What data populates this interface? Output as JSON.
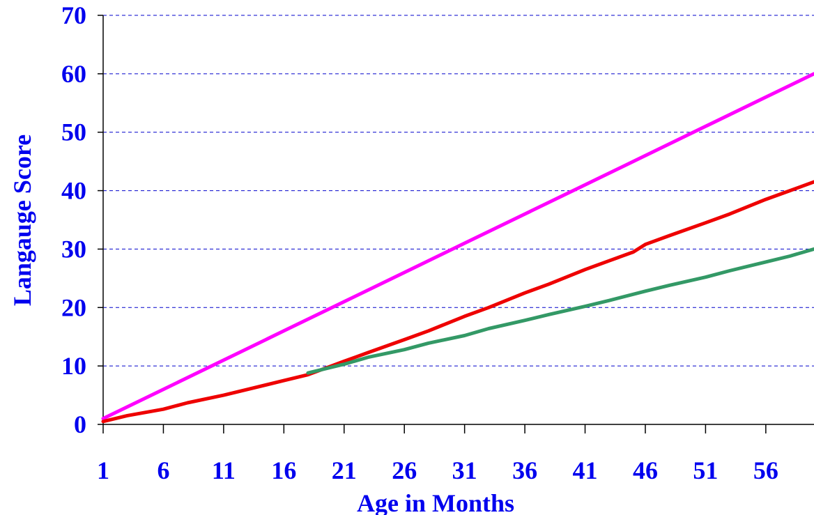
{
  "chart_data": {
    "type": "line",
    "title": "",
    "xlabel": "Age in Months",
    "ylabel": "Langauge Score",
    "xlim": [
      1,
      60
    ],
    "ylim": [
      0,
      70
    ],
    "x_ticks": [
      "1",
      "6",
      "11",
      "16",
      "21",
      "26",
      "31",
      "36",
      "41",
      "46",
      "51",
      "56"
    ],
    "y_ticks": [
      "0",
      "10",
      "20",
      "30",
      "40",
      "50",
      "60",
      "70"
    ],
    "grid": "horizontal dashed",
    "legend": "none",
    "series": [
      {
        "color": "#ff00ff",
        "points": [
          [
            1,
            1
          ],
          [
            6,
            6
          ],
          [
            11,
            11
          ],
          [
            16,
            16
          ],
          [
            21,
            21
          ],
          [
            26,
            26
          ],
          [
            31,
            31
          ],
          [
            36,
            36
          ],
          [
            41,
            41
          ],
          [
            46,
            46
          ],
          [
            51,
            51
          ],
          [
            56,
            56
          ],
          [
            60,
            60
          ]
        ]
      },
      {
        "color": "#ee0000",
        "points": [
          [
            1,
            0.5
          ],
          [
            3,
            1.5
          ],
          [
            6,
            2.6
          ],
          [
            8,
            3.7
          ],
          [
            11,
            5.0
          ],
          [
            13,
            6.0
          ],
          [
            16,
            7.5
          ],
          [
            18,
            8.5
          ],
          [
            21,
            10.8
          ],
          [
            23,
            12.3
          ],
          [
            26,
            14.5
          ],
          [
            28,
            16.0
          ],
          [
            31,
            18.5
          ],
          [
            33,
            20.0
          ],
          [
            36,
            22.5
          ],
          [
            38,
            24.0
          ],
          [
            41,
            26.5
          ],
          [
            43,
            28.0
          ],
          [
            45,
            29.5
          ],
          [
            46,
            30.8
          ],
          [
            48,
            32.3
          ],
          [
            51,
            34.5
          ],
          [
            53,
            36.0
          ],
          [
            56,
            38.5
          ],
          [
            58,
            40.0
          ],
          [
            60,
            41.5
          ]
        ]
      },
      {
        "color": "#339966",
        "points": [
          [
            18,
            8.8
          ],
          [
            21,
            10.3
          ],
          [
            23,
            11.5
          ],
          [
            26,
            12.8
          ],
          [
            28,
            13.9
          ],
          [
            31,
            15.2
          ],
          [
            33,
            16.4
          ],
          [
            36,
            17.8
          ],
          [
            38,
            18.8
          ],
          [
            41,
            20.2
          ],
          [
            43,
            21.2
          ],
          [
            46,
            22.8
          ],
          [
            48,
            23.8
          ],
          [
            51,
            25.2
          ],
          [
            53,
            26.3
          ],
          [
            56,
            27.8
          ],
          [
            58,
            28.8
          ],
          [
            60,
            30
          ]
        ]
      }
    ]
  }
}
